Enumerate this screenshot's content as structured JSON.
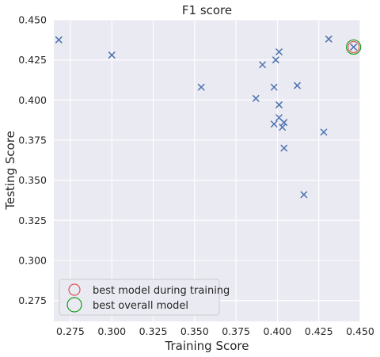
{
  "chart_data": {
    "type": "scatter",
    "title": "F1 score",
    "xlabel": "Training Score",
    "ylabel": "Testing Score",
    "xlim": [
      0.265,
      0.45
    ],
    "ylim": [
      0.262,
      0.45
    ],
    "xticks": [
      "0.275",
      "0.300",
      "0.325",
      "0.350",
      "0.375",
      "0.400",
      "0.425",
      "0.450"
    ],
    "xtick_values": [
      0.275,
      0.3,
      0.325,
      0.35,
      0.375,
      0.4,
      0.425,
      0.45
    ],
    "yticks": [
      "0.275",
      "0.300",
      "0.325",
      "0.350",
      "0.375",
      "0.400",
      "0.425",
      "0.450"
    ],
    "ytick_values": [
      0.275,
      0.3,
      0.325,
      0.35,
      0.375,
      0.4,
      0.425,
      0.45
    ],
    "grid": true,
    "legend_placement": "lower-left",
    "series": [
      {
        "marker": "x",
        "color": "#4c72b0",
        "points": [
          [
            0.268,
            0.4375
          ],
          [
            0.3,
            0.428
          ],
          [
            0.354,
            0.408
          ],
          [
            0.387,
            0.401
          ],
          [
            0.391,
            0.422
          ],
          [
            0.398,
            0.408
          ],
          [
            0.399,
            0.425
          ],
          [
            0.401,
            0.43
          ],
          [
            0.401,
            0.397
          ],
          [
            0.401,
            0.389
          ],
          [
            0.398,
            0.385
          ],
          [
            0.403,
            0.383
          ],
          [
            0.404,
            0.386
          ],
          [
            0.404,
            0.37
          ],
          [
            0.412,
            0.409
          ],
          [
            0.416,
            0.341
          ],
          [
            0.428,
            0.38
          ],
          [
            0.431,
            0.438
          ],
          [
            0.446,
            0.433
          ]
        ]
      },
      {
        "name": "best model during training",
        "marker": "circle",
        "color": "#dd5555",
        "points": [
          [
            0.446,
            0.433
          ]
        ]
      },
      {
        "name": "best overall model",
        "marker": "circle",
        "color": "#1a9a1a",
        "points": [
          [
            0.446,
            0.433
          ]
        ]
      }
    ],
    "legend": [
      {
        "label": "best model during training",
        "color": "#dd5555"
      },
      {
        "label": "best overall model",
        "color": "#1a9a1a"
      }
    ],
    "colors": {
      "plot_background": "#eaeaf2",
      "grid": "#ffffff",
      "marker": "#4c72b0",
      "legend_background": "#eaeaf2",
      "legend_border": "#cccccc"
    }
  }
}
